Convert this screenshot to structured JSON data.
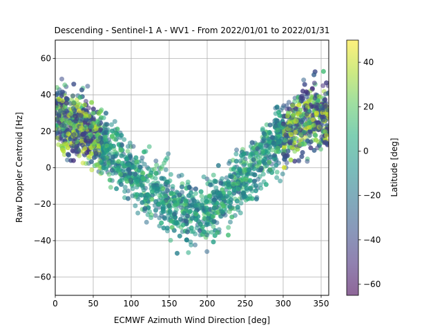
{
  "chart_data": {
    "type": "scatter",
    "title": "Descending - Sentinel-1 A - WV1 - From 2022/01/01 to 2022/01/31",
    "xlabel": "ECMWF Azimuth Wind Direction [deg]",
    "ylabel": "Raw Doppler Centroid [Hz]",
    "xlim": [
      0,
      360
    ],
    "ylim": [
      -70,
      70
    ],
    "xticks": [
      0,
      50,
      100,
      150,
      200,
      250,
      300,
      350
    ],
    "yticks": [
      -60,
      -40,
      -20,
      0,
      20,
      40,
      60
    ],
    "grid": true,
    "colorbar": {
      "label": "Latitude [deg]",
      "colormap": "viridis",
      "range": [
        -65,
        50
      ],
      "ticks": [
        -60,
        -40,
        -20,
        0,
        20,
        40
      ],
      "alpha": 0.55
    },
    "trend": "V-shaped: ~+30 Hz near 0/360 deg, minimum ~-25 Hz near 180-200 deg",
    "trend_profile": [
      {
        "x": 0,
        "y": 28
      },
      {
        "x": 30,
        "y": 24
      },
      {
        "x": 60,
        "y": 14
      },
      {
        "x": 90,
        "y": 2
      },
      {
        "x": 120,
        "y": -10
      },
      {
        "x": 150,
        "y": -18
      },
      {
        "x": 175,
        "y": -23
      },
      {
        "x": 200,
        "y": -24
      },
      {
        "x": 225,
        "y": -16
      },
      {
        "x": 250,
        "y": -4
      },
      {
        "x": 275,
        "y": 8
      },
      {
        "x": 300,
        "y": 19
      },
      {
        "x": 330,
        "y": 26
      },
      {
        "x": 360,
        "y": 28
      }
    ],
    "scatter_spread_hz": 12,
    "approx_point_count": 3000
  }
}
